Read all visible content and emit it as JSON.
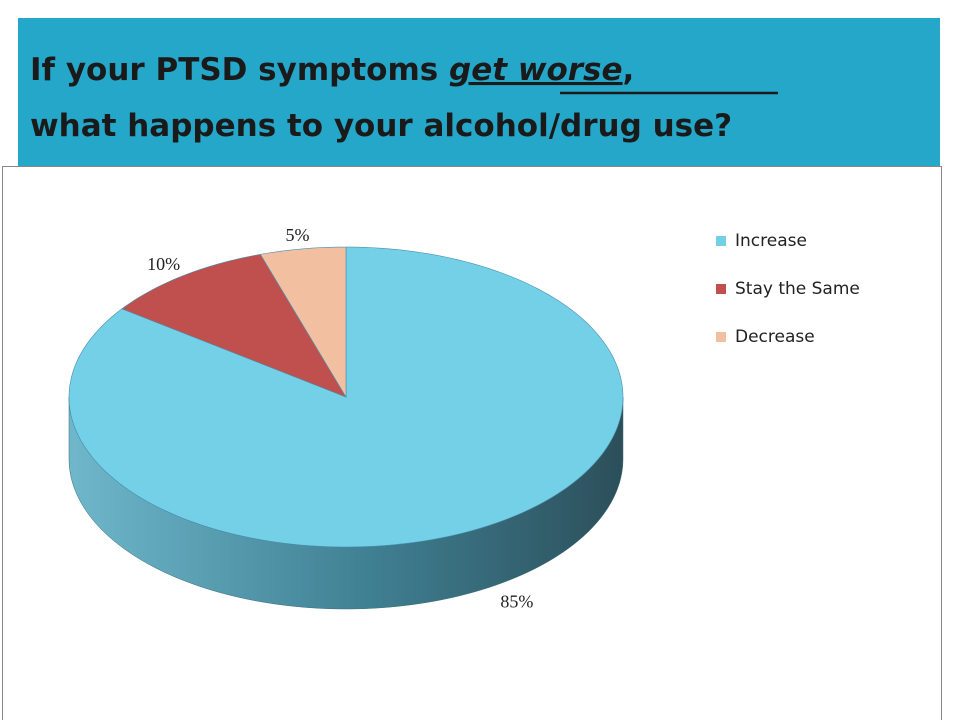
{
  "chart_data": {
    "type": "pie3d",
    "title": [
      "If your PTSD symptoms ",
      "get worse",
      ",",
      "what happens to your alcohol/drug use?"
    ],
    "categories": [
      "Increase",
      "Stay the Same",
      "Decrease"
    ],
    "values": [
      85,
      10,
      5
    ],
    "value_labels": [
      "85%",
      "10%",
      "5%"
    ],
    "colors": [
      "#74d0e6",
      "#c0504d",
      "#f2bfa0"
    ],
    "legend_position": "right"
  }
}
